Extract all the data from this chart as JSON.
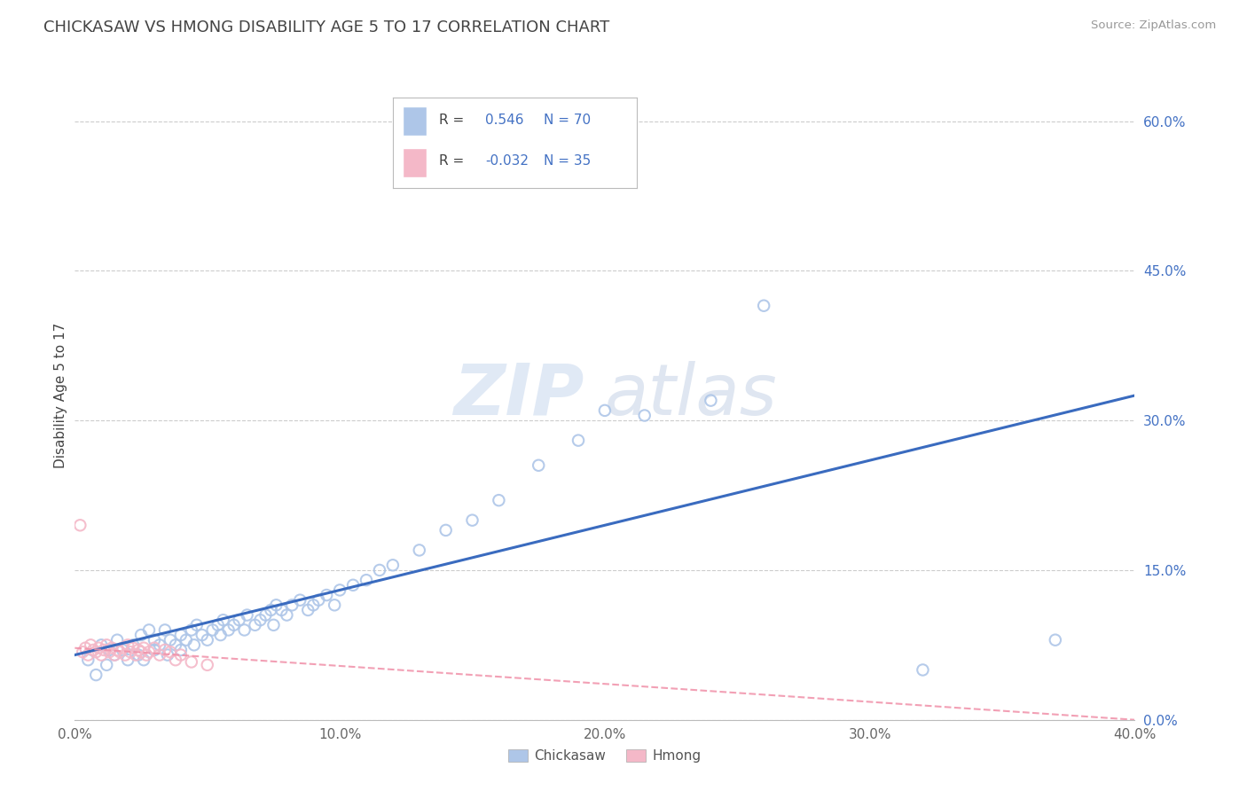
{
  "title": "CHICKASAW VS HMONG DISABILITY AGE 5 TO 17 CORRELATION CHART",
  "source": "Source: ZipAtlas.com",
  "ylabel": "Disability Age 5 to 17",
  "xlim": [
    0.0,
    0.4
  ],
  "ylim": [
    0.0,
    0.65
  ],
  "x_ticks": [
    0.0,
    0.1,
    0.2,
    0.3,
    0.4
  ],
  "x_tick_labels": [
    "0.0%",
    "10.0%",
    "20.0%",
    "30.0%",
    "40.0%"
  ],
  "y_ticks": [
    0.0,
    0.15,
    0.3,
    0.45,
    0.6
  ],
  "y_tick_labels": [
    "0.0%",
    "15.0%",
    "30.0%",
    "45.0%",
    "60.0%"
  ],
  "chickasaw_color": "#aec6e8",
  "hmong_color": "#f4b8c8",
  "trendline_chickasaw_color": "#3a6bbf",
  "trendline_hmong_color": "#f090a8",
  "legend_chickasaw_color": "#aec6e8",
  "legend_hmong_color": "#f4b8c8",
  "R_chickasaw": 0.546,
  "N_chickasaw": 70,
  "R_hmong": -0.032,
  "N_hmong": 35,
  "watermark": "ZIPatlas",
  "trendline_c_x0": 0.0,
  "trendline_c_y0": 0.065,
  "trendline_c_x1": 0.4,
  "trendline_c_y1": 0.325,
  "trendline_h_x0": 0.0,
  "trendline_h_y0": 0.072,
  "trendline_h_x1": 0.4,
  "trendline_h_y1": 0.0,
  "chickasaw_x": [
    0.005,
    0.008,
    0.01,
    0.012,
    0.013,
    0.015,
    0.016,
    0.018,
    0.02,
    0.022,
    0.024,
    0.025,
    0.026,
    0.028,
    0.03,
    0.03,
    0.032,
    0.034,
    0.035,
    0.036,
    0.038,
    0.04,
    0.04,
    0.042,
    0.044,
    0.045,
    0.046,
    0.048,
    0.05,
    0.052,
    0.054,
    0.055,
    0.056,
    0.058,
    0.06,
    0.062,
    0.064,
    0.065,
    0.068,
    0.07,
    0.072,
    0.074,
    0.075,
    0.076,
    0.078,
    0.08,
    0.082,
    0.085,
    0.088,
    0.09,
    0.092,
    0.095,
    0.098,
    0.1,
    0.105,
    0.11,
    0.115,
    0.12,
    0.13,
    0.14,
    0.15,
    0.16,
    0.175,
    0.19,
    0.2,
    0.215,
    0.24,
    0.26,
    0.32,
    0.37
  ],
  "chickasaw_y": [
    0.06,
    0.045,
    0.075,
    0.055,
    0.07,
    0.065,
    0.08,
    0.07,
    0.06,
    0.075,
    0.065,
    0.085,
    0.06,
    0.09,
    0.07,
    0.08,
    0.075,
    0.09,
    0.065,
    0.08,
    0.075,
    0.07,
    0.085,
    0.08,
    0.09,
    0.075,
    0.095,
    0.085,
    0.08,
    0.09,
    0.095,
    0.085,
    0.1,
    0.09,
    0.095,
    0.1,
    0.09,
    0.105,
    0.095,
    0.1,
    0.105,
    0.11,
    0.095,
    0.115,
    0.11,
    0.105,
    0.115,
    0.12,
    0.11,
    0.115,
    0.12,
    0.125,
    0.115,
    0.13,
    0.135,
    0.14,
    0.15,
    0.155,
    0.17,
    0.19,
    0.2,
    0.22,
    0.255,
    0.28,
    0.31,
    0.305,
    0.32,
    0.415,
    0.05,
    0.08
  ],
  "hmong_x": [
    0.003,
    0.004,
    0.005,
    0.006,
    0.007,
    0.008,
    0.009,
    0.01,
    0.011,
    0.012,
    0.013,
    0.014,
    0.015,
    0.016,
    0.017,
    0.018,
    0.019,
    0.02,
    0.021,
    0.022,
    0.023,
    0.024,
    0.025,
    0.026,
    0.027,
    0.028,
    0.03,
    0.032,
    0.034,
    0.036,
    0.038,
    0.04,
    0.044,
    0.05,
    0.002
  ],
  "hmong_y": [
    0.068,
    0.072,
    0.065,
    0.075,
    0.07,
    0.068,
    0.072,
    0.065,
    0.07,
    0.075,
    0.068,
    0.072,
    0.065,
    0.07,
    0.068,
    0.072,
    0.065,
    0.075,
    0.068,
    0.072,
    0.065,
    0.07,
    0.068,
    0.072,
    0.065,
    0.068,
    0.072,
    0.065,
    0.07,
    0.068,
    0.06,
    0.065,
    0.058,
    0.055,
    0.195
  ]
}
